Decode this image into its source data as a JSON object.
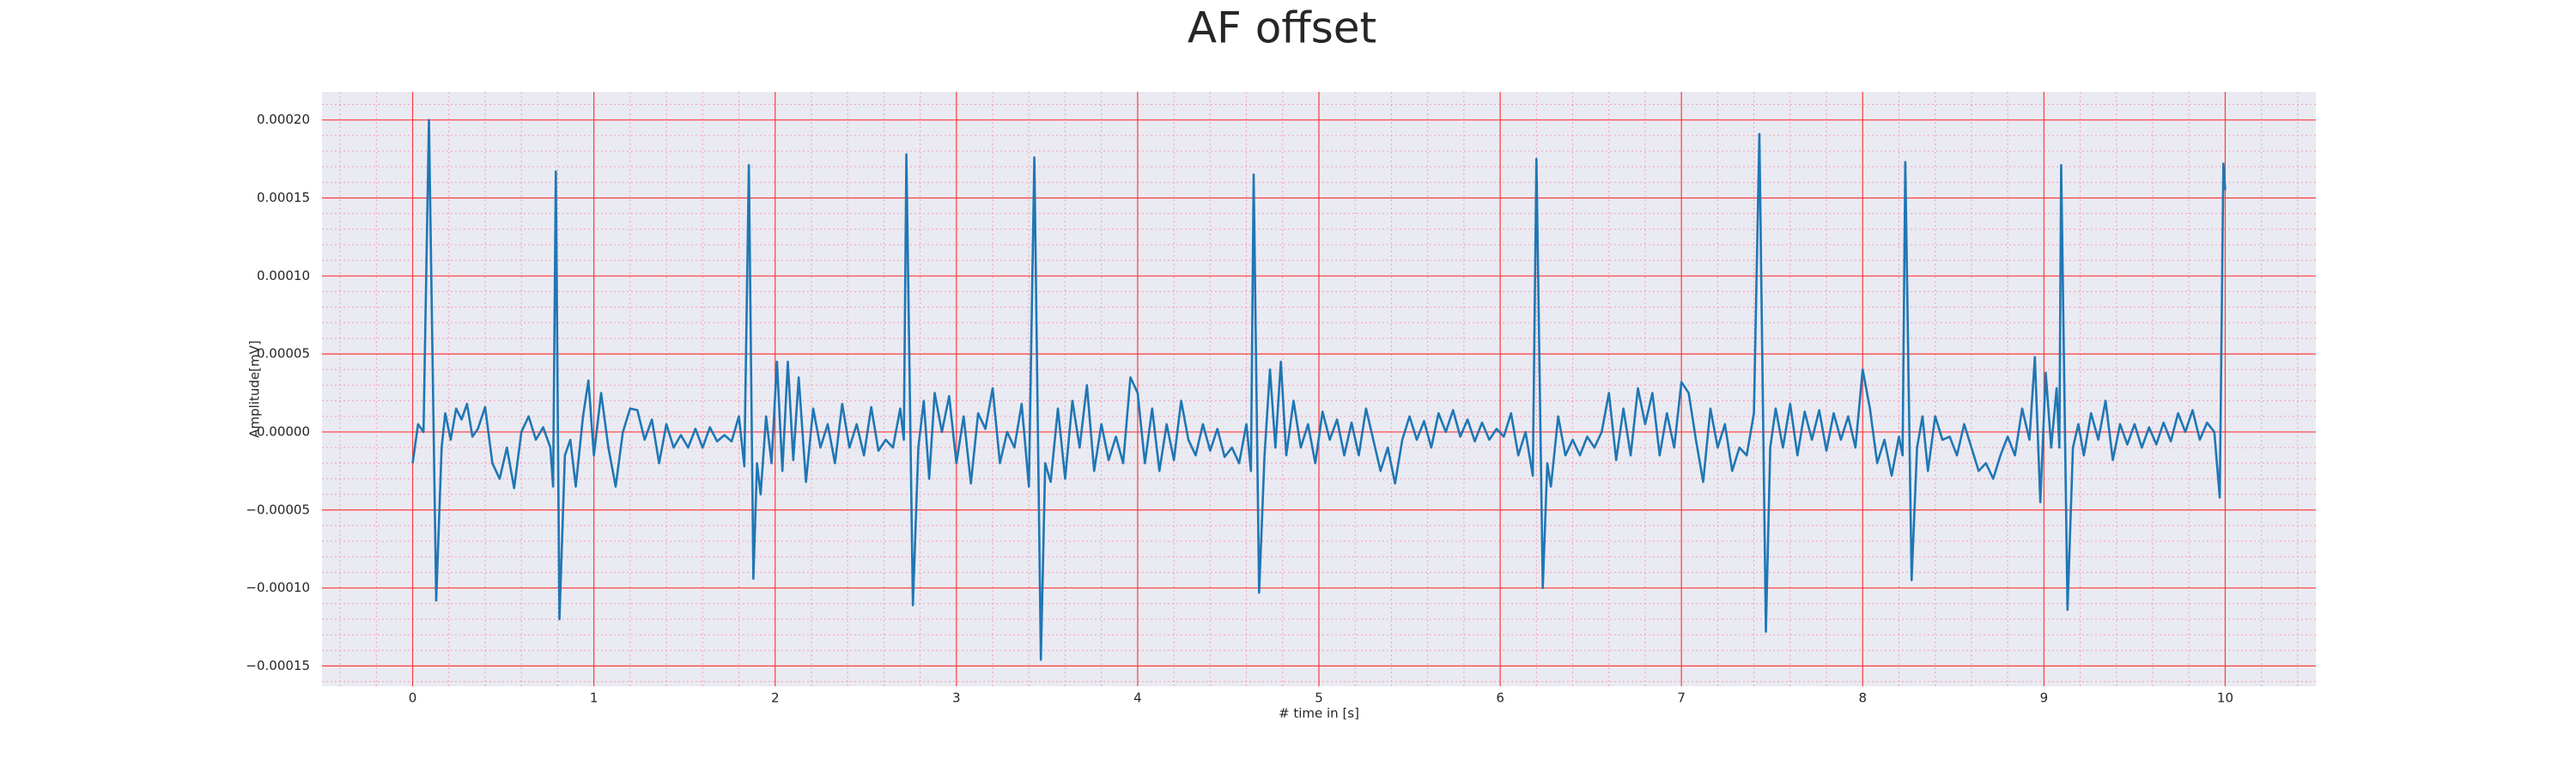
{
  "chart_data": {
    "type": "line",
    "title": "AF offset",
    "xlabel": "# time in [s]",
    "ylabel": "Amplitude[mV]",
    "xlim": [
      -0.5,
      10.5
    ],
    "ylim": [
      -0.000163,
      0.000218
    ],
    "xticks": [
      0,
      1,
      2,
      3,
      4,
      5,
      6,
      7,
      8,
      9,
      10
    ],
    "yticks": [
      {
        "value": -0.00015,
        "label": "−0.00015"
      },
      {
        "value": -0.0001,
        "label": "−0.00010"
      },
      {
        "value": -5e-05,
        "label": "−0.00005"
      },
      {
        "value": 0,
        "label": "0.00000"
      },
      {
        "value": 5e-05,
        "label": "0.00005"
      },
      {
        "value": 0.0001,
        "label": "0.00010"
      },
      {
        "value": 0.00015,
        "label": "0.00015"
      },
      {
        "value": 0.0002,
        "label": "0.00020"
      }
    ],
    "xminorticks": [
      -0.4,
      -0.2,
      0.2,
      0.4,
      0.6,
      0.8,
      1.2,
      1.4,
      1.6,
      1.8,
      2.2,
      2.4,
      2.6,
      2.8,
      3.2,
      3.4,
      3.6,
      3.8,
      4.2,
      4.4,
      4.6,
      4.8,
      5.2,
      5.4,
      5.6,
      5.8,
      6.2,
      6.4,
      6.6,
      6.8,
      7.2,
      7.4,
      7.6,
      7.8,
      8.2,
      8.4,
      8.6,
      8.8,
      9.2,
      9.4,
      9.6,
      9.8,
      10.2,
      10.4
    ],
    "yminorticks": [
      -0.00016,
      -0.00014,
      -0.00013,
      -0.00012,
      -0.00011,
      -9e-05,
      -8e-05,
      -7e-05,
      -6e-05,
      -4e-05,
      -3e-05,
      -2e-05,
      -1e-05,
      1e-05,
      2e-05,
      3e-05,
      4e-05,
      6e-05,
      7e-05,
      8e-05,
      9e-05,
      0.00011,
      0.00012,
      0.00013,
      0.00014,
      0.00016,
      0.00017,
      0.00018,
      0.00019,
      0.00021
    ],
    "grid": true,
    "minor_grid": true,
    "background": "#eaeaf2",
    "grid_color": "#ff3b3b",
    "minor_grid_color": "#f4a0b4",
    "color": "#1f77b4",
    "x": [
      0.0,
      0.03,
      0.06,
      0.09,
      0.13,
      0.16,
      0.18,
      0.21,
      0.24,
      0.27,
      0.3,
      0.33,
      0.36,
      0.4,
      0.44,
      0.48,
      0.52,
      0.56,
      0.6,
      0.64,
      0.68,
      0.72,
      0.76,
      0.775,
      0.79,
      0.81,
      0.84,
      0.87,
      0.9,
      0.94,
      0.97,
      1.0,
      1.04,
      1.08,
      1.12,
      1.16,
      1.2,
      1.24,
      1.28,
      1.32,
      1.36,
      1.4,
      1.44,
      1.48,
      1.52,
      1.56,
      1.6,
      1.64,
      1.68,
      1.72,
      1.76,
      1.8,
      1.83,
      1.855,
      1.88,
      1.9,
      1.92,
      1.95,
      1.98,
      2.01,
      2.04,
      2.07,
      2.1,
      2.13,
      2.17,
      2.21,
      2.25,
      2.29,
      2.33,
      2.37,
      2.41,
      2.45,
      2.49,
      2.53,
      2.57,
      2.61,
      2.65,
      2.69,
      2.71,
      2.724,
      2.76,
      2.79,
      2.82,
      2.85,
      2.88,
      2.92,
      2.96,
      3.0,
      3.04,
      3.08,
      3.12,
      3.16,
      3.2,
      3.24,
      3.28,
      3.32,
      3.36,
      3.4,
      3.43,
      3.466,
      3.49,
      3.52,
      3.56,
      3.6,
      3.64,
      3.68,
      3.72,
      3.76,
      3.8,
      3.84,
      3.88,
      3.92,
      3.96,
      4.0,
      4.04,
      4.08,
      4.12,
      4.16,
      4.2,
      4.24,
      4.28,
      4.32,
      4.36,
      4.4,
      4.44,
      4.48,
      4.52,
      4.56,
      4.6,
      4.625,
      4.64,
      4.67,
      4.7,
      4.73,
      4.76,
      4.79,
      4.82,
      4.86,
      4.9,
      4.94,
      4.98,
      5.02,
      5.06,
      5.1,
      5.14,
      5.18,
      5.22,
      5.26,
      5.3,
      5.34,
      5.38,
      5.42,
      5.46,
      5.5,
      5.54,
      5.58,
      5.62,
      5.66,
      5.7,
      5.74,
      5.78,
      5.82,
      5.86,
      5.9,
      5.94,
      5.98,
      6.02,
      6.06,
      6.1,
      6.14,
      6.18,
      6.2,
      6.235,
      6.26,
      6.28,
      6.32,
      6.36,
      6.4,
      6.44,
      6.48,
      6.52,
      6.56,
      6.6,
      6.64,
      6.68,
      6.72,
      6.76,
      6.8,
      6.84,
      6.88,
      6.92,
      6.96,
      7.0,
      7.04,
      7.08,
      7.12,
      7.16,
      7.2,
      7.24,
      7.28,
      7.32,
      7.36,
      7.4,
      7.43,
      7.466,
      7.49,
      7.52,
      7.56,
      7.6,
      7.64,
      7.68,
      7.72,
      7.76,
      7.8,
      7.84,
      7.88,
      7.92,
      7.96,
      8.0,
      8.04,
      8.08,
      8.12,
      8.16,
      8.2,
      8.22,
      8.235,
      8.27,
      8.3,
      8.33,
      8.36,
      8.4,
      8.44,
      8.48,
      8.52,
      8.56,
      8.6,
      8.64,
      8.68,
      8.72,
      8.76,
      8.8,
      8.84,
      8.88,
      8.92,
      8.95,
      8.98,
      9.01,
      9.04,
      9.07,
      9.085,
      9.095,
      9.13,
      9.16,
      9.19,
      9.22,
      9.26,
      9.3,
      9.34,
      9.38,
      9.42,
      9.46,
      9.5,
      9.54,
      9.58,
      9.62,
      9.66,
      9.7,
      9.74,
      9.78,
      9.82,
      9.86,
      9.9,
      9.94,
      9.97,
      9.99,
      10.0
    ],
    "values": [
      -2e-05,
      5e-06,
      0,
      0.0002,
      -0.000108,
      -1e-05,
      1.2e-05,
      -5e-06,
      1.5e-05,
      8e-06,
      1.8e-05,
      -3e-06,
      2e-06,
      1.6e-05,
      -2e-05,
      -3e-05,
      -1e-05,
      -3.6e-05,
      0,
      1e-05,
      -5e-06,
      3e-06,
      -1e-05,
      -3.5e-05,
      0.000167,
      -0.00012,
      -1.5e-05,
      -5e-06,
      -3.5e-05,
      1e-05,
      3.3e-05,
      -1.5e-05,
      2.5e-05,
      -1e-05,
      -3.5e-05,
      0,
      1.5e-05,
      1.4e-05,
      -5e-06,
      8e-06,
      -2e-05,
      5e-06,
      -1e-05,
      -2e-06,
      -1e-05,
      2e-06,
      -1e-05,
      3e-06,
      -6e-06,
      -2e-06,
      -6e-06,
      1e-05,
      -2.2e-05,
      0.000171,
      -9.4e-05,
      -2e-05,
      -4e-05,
      1e-05,
      -2e-05,
      4.5e-05,
      -2.5e-05,
      4.5e-05,
      -1.8e-05,
      3.5e-05,
      -3.2e-05,
      1.5e-05,
      -1e-05,
      5e-06,
      -2e-05,
      1.8e-05,
      -1e-05,
      5e-06,
      -1.5e-05,
      1.6e-05,
      -1.2e-05,
      -5e-06,
      -1e-05,
      1.5e-05,
      -5e-06,
      0.000178,
      -0.000111,
      -1e-05,
      2e-05,
      -3e-05,
      2.5e-05,
      0,
      2.3e-05,
      -2e-05,
      1e-05,
      -3.3e-05,
      1.2e-05,
      2e-06,
      2.8e-05,
      -2e-05,
      0,
      -1e-05,
      1.8e-05,
      -3.5e-05,
      0.000176,
      -0.000146,
      -2e-05,
      -3.2e-05,
      1.5e-05,
      -3e-05,
      2e-05,
      -1e-05,
      3e-05,
      -2.5e-05,
      5e-06,
      -1.8e-05,
      -3e-06,
      -2e-05,
      3.5e-05,
      2.5e-05,
      -2e-05,
      1.5e-05,
      -2.5e-05,
      5e-06,
      -1.8e-05,
      2e-05,
      -5e-06,
      -1.5e-05,
      5e-06,
      -1.2e-05,
      2e-06,
      -1.6e-05,
      -1e-05,
      -2e-05,
      5e-06,
      -2.5e-05,
      0.000165,
      -0.000103,
      -1.5e-05,
      4e-05,
      -1e-05,
      4.5e-05,
      -1.5e-05,
      2e-05,
      -1e-05,
      5e-06,
      -2e-05,
      1.3e-05,
      -5e-06,
      8e-06,
      -1.5e-05,
      6e-06,
      -1.5e-05,
      1.5e-05,
      -5e-06,
      -2.5e-05,
      -1e-05,
      -3.3e-05,
      -5e-06,
      1e-05,
      -5e-06,
      7e-06,
      -1e-05,
      1.2e-05,
      0,
      1.4e-05,
      -3e-06,
      8e-06,
      -6e-06,
      6e-06,
      -5e-06,
      2e-06,
      -3e-06,
      1.2e-05,
      -1.5e-05,
      0,
      -2.8e-05,
      0.000175,
      -0.0001,
      -2e-05,
      -3.5e-05,
      1e-05,
      -1.5e-05,
      -5e-06,
      -1.5e-05,
      -3e-06,
      -1e-05,
      0,
      2.5e-05,
      -1.8e-05,
      1.5e-05,
      -1.5e-05,
      2.8e-05,
      5e-06,
      2.5e-05,
      -1.5e-05,
      1.2e-05,
      -1e-05,
      3.2e-05,
      2.5e-05,
      -5e-06,
      -3.2e-05,
      1.5e-05,
      -1e-05,
      5e-06,
      -2.5e-05,
      -1e-05,
      -1.5e-05,
      1.2e-05,
      0.000191,
      -0.000128,
      -1e-05,
      1.5e-05,
      -1e-05,
      1.8e-05,
      -1.5e-05,
      1.3e-05,
      -5e-06,
      1.4e-05,
      -1.2e-05,
      1.2e-05,
      -5e-06,
      1e-05,
      -1e-05,
      4e-05,
      1.5e-05,
      -2e-05,
      -5e-06,
      -2.8e-05,
      -3e-06,
      -1.5e-05,
      0.000173,
      -9.5e-05,
      -1e-05,
      1e-05,
      -2.5e-05,
      1e-05,
      -5e-06,
      -3e-06,
      -1.5e-05,
      5e-06,
      -1e-05,
      -2.5e-05,
      -2e-05,
      -3e-05,
      -1.5e-05,
      -3e-06,
      -1.5e-05,
      1.5e-05,
      -5e-06,
      4.8e-05,
      -4.5e-05,
      3.8e-05,
      -1e-05,
      2.8e-05,
      -1e-05,
      0.000171,
      -0.000114,
      -1e-05,
      5e-06,
      -1.5e-05,
      1.2e-05,
      -5e-06,
      2e-05,
      -1.8e-05,
      5e-06,
      -8e-06,
      5e-06,
      -1e-05,
      3e-06,
      -8e-06,
      6e-06,
      -6e-06,
      1.2e-05,
      0,
      1.4e-05,
      -5e-06,
      6e-06,
      0,
      -4.2e-05,
      0.000172,
      0.000155
    ]
  }
}
